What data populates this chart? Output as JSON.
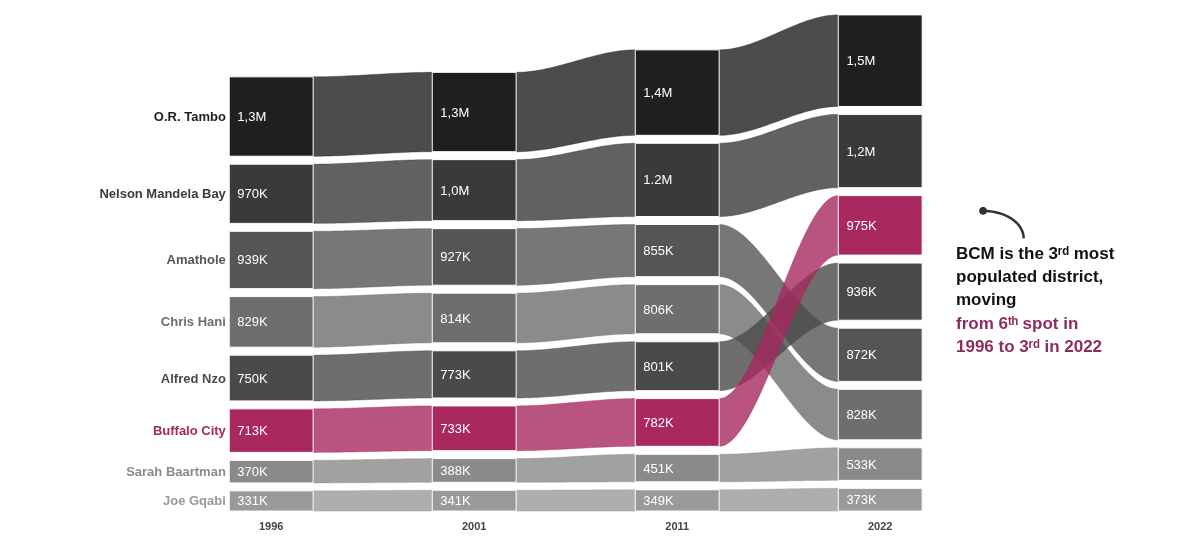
{
  "chart_data": {
    "type": "other",
    "categories": [
      "1996",
      "2001",
      "2011",
      "2022"
    ],
    "series": [
      {
        "name": "O.R. Tambo",
        "color": "#1f1f1f",
        "values": [
          1300000,
          1300000,
          1400000,
          1500000
        ],
        "value_labels": [
          "1,3M",
          "1,3M",
          "1,4M",
          "1,5M"
        ]
      },
      {
        "name": "Nelson Mandela Bay",
        "color": "#3a3a3a",
        "values": [
          970000,
          1000000,
          1200000,
          1200000
        ],
        "value_labels": [
          "970K",
          "1,0M",
          "1.2M",
          "1,2M"
        ]
      },
      {
        "name": "Amathole",
        "color": "#555555",
        "values": [
          939000,
          927000,
          855000,
          872000
        ],
        "value_labels": [
          "939K",
          "927K",
          "855K",
          "872K"
        ]
      },
      {
        "name": "Chris Hani",
        "color": "#6e6e6e",
        "values": [
          829000,
          814000,
          806000,
          828000
        ],
        "value_labels": [
          "829K",
          "814K",
          "806K",
          "828K"
        ]
      },
      {
        "name": "Alfred Nzo",
        "color": "#4a4a4a",
        "values": [
          750000,
          773000,
          801000,
          936000
        ],
        "value_labels": [
          "750K",
          "773K",
          "801K",
          "936K"
        ]
      },
      {
        "name": "Buffalo City",
        "color": "#a8285f",
        "values": [
          713000,
          733000,
          782000,
          975000
        ],
        "value_labels": [
          "713K",
          "733K",
          "782K",
          "975K"
        ]
      },
      {
        "name": "Sarah Baartman",
        "color": "#8a8a8a",
        "values": [
          370000,
          388000,
          451000,
          533000
        ],
        "value_labels": [
          "370K",
          "388K",
          "451K",
          "533K"
        ]
      },
      {
        "name": "Joe Gqabi",
        "color": "#9a9a9a",
        "values": [
          331000,
          341000,
          349000,
          373000
        ],
        "value_labels": [
          "331K",
          "341K",
          "349K",
          "373K"
        ]
      }
    ],
    "annotations": [
      "BCM is the 3ʳᵈ most populated district, moving",
      "from 6ᵗʰ spot in 1996 to 3ʳᵈ in 2022"
    ]
  }
}
